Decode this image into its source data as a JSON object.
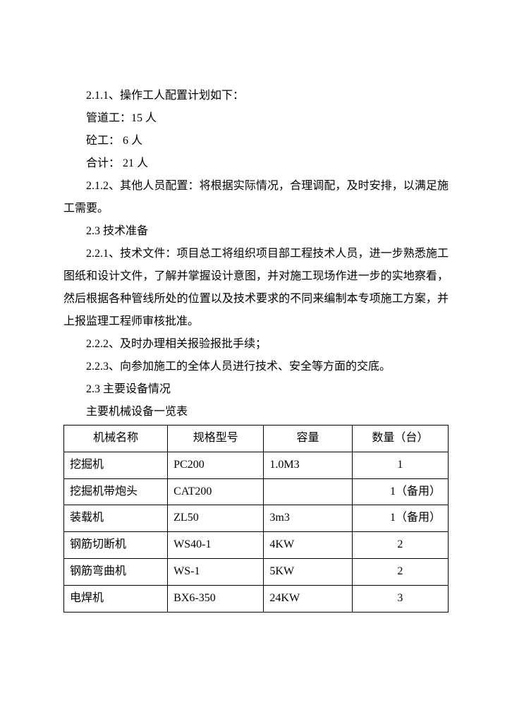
{
  "paragraphs": {
    "p1": "2.1.1、操作工人配置计划如下：",
    "p2": "管道工：15 人",
    "p3": "砼工：  6 人",
    "p4": "合计：  21 人",
    "p5": "2.1.2、其他人员配置：将根据实际情况，合理调配，及时安排，以满足施工需要。",
    "p6": "2.3 技术准备",
    "p7": "2.2.1、技术文件：项目总工将组织项目部工程技术人员，进一步熟悉施工图纸和设计文件，了解并掌握设计意图，并对施工现场作进一步的实地察看，然后根据各种管线所处的位置以及技术要求的不同来编制本专项施工方案，并上报监理工程师审核批准。",
    "p8": "2.2.2、及时办理相关报验报批手续；",
    "p9": "2.2.3、向参加施工的全体人员进行技术、安全等方面的交底。",
    "p10": "2.3 主要设备情况",
    "p11": "主要机械设备一览表"
  },
  "table": {
    "headers": {
      "name": "机械名称",
      "spec": "规格型号",
      "cap": "容量",
      "qty": "数量（台）"
    },
    "rows": [
      {
        "name": "挖掘机",
        "spec": "PC200",
        "cap": "1.0M3",
        "qty": "1"
      },
      {
        "name": "挖掘机带炮头",
        "spec": "CAT200",
        "cap": "",
        "qty": "1（备用）"
      },
      {
        "name": "装载机",
        "spec": "ZL50",
        "cap": "3m3",
        "qty": "1（备用）"
      },
      {
        "name": "钢筋切断机",
        "spec": "WS40-1",
        "cap": "4KW",
        "qty": "2"
      },
      {
        "name": "钢筋弯曲机",
        "spec": "WS-1",
        "cap": "5KW",
        "qty": "2"
      },
      {
        "name": "电焊机",
        "spec": "BX6-350",
        "cap": "24KW",
        "qty": "3"
      }
    ]
  }
}
